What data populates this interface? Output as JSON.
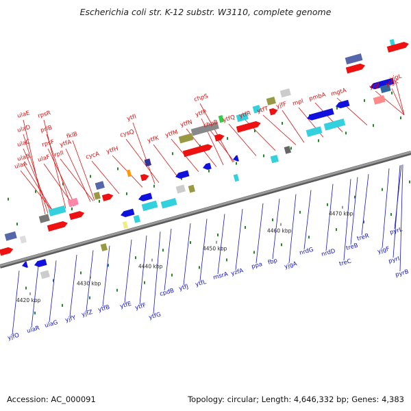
{
  "title": "Escherichia coli str. K-12 substr. W3110, complete genome",
  "footer": {
    "accession": "Accession: AC_000091",
    "summary": "Topology: circular; Length: 4,646,332 bp; Genes: 4,383"
  },
  "colors": {
    "forward": "#ee1111",
    "reverse": "#1111dd",
    "backbone": "#808080",
    "cyan": "#33d0dd",
    "olive": "#999944",
    "slate": "#5566aa"
  },
  "kbp_ticks": [
    "4420 kbp",
    "4430 kbp",
    "4440 kbp",
    "4450 kbp",
    "4460 kbp",
    "4470 kbp"
  ],
  "top_labels": [
    "ulaE",
    "ulaD",
    "ulaC",
    "ulaB",
    "ulaA",
    "rpsR",
    "priB",
    "rpsF",
    "ulaF",
    "rplI",
    "fklB",
    "ytfA",
    "cycA",
    "ytfH",
    "cysQ",
    "ytfI",
    "ytfK",
    "ytfM",
    "ytfN",
    "chpS",
    "ytfP",
    "chpB",
    "ytfQ",
    "ytfR",
    "ytfT",
    "yjfF",
    "mpl",
    "pmbA",
    "mgtA",
    "yjgI",
    "yjgK",
    "yjgL"
  ],
  "bottom_labels": [
    "yjfO",
    "ulaR",
    "ulaG",
    "yjfY",
    "yjfZ",
    "ytfB",
    "ytfE",
    "ytfF",
    "ytfG",
    "cpdB",
    "ytfJ",
    "ytfL",
    "msrA",
    "yzfA",
    "ppa",
    "fbp",
    "yjgA",
    "nrdG",
    "nrdD",
    "treC",
    "treB",
    "treR",
    "yjgF",
    "pyrI",
    "pyrL",
    "pyrB"
  ]
}
